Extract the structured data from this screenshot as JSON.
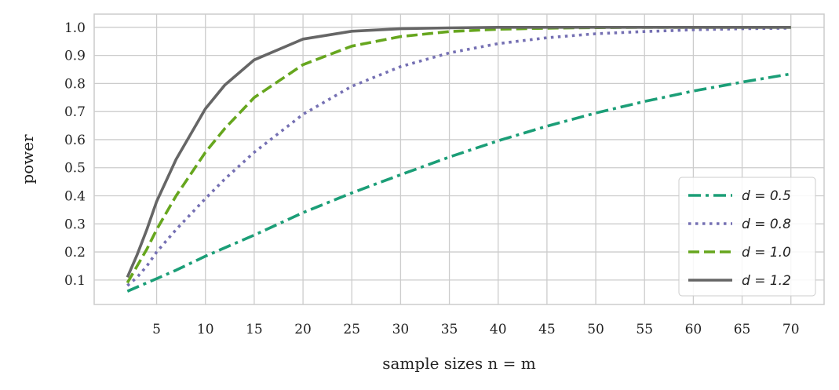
{
  "chart_data": {
    "type": "line",
    "title": "",
    "xlabel": "sample sizes n = m",
    "ylabel": "power",
    "xlim": [
      -1.4,
      73.4
    ],
    "ylim": [
      0.013,
      1.047
    ],
    "xticks": [
      5,
      10,
      15,
      20,
      25,
      30,
      35,
      40,
      45,
      50,
      55,
      60,
      65,
      70
    ],
    "yticks": [
      "0.1",
      "0.2",
      "0.3",
      "0.4",
      "0.5",
      "0.6",
      "0.7",
      "0.8",
      "0.9",
      "1.0"
    ],
    "grid": true,
    "legend_position": "lower-right",
    "x": [
      2,
      3,
      4,
      5,
      7,
      10,
      12,
      15,
      20,
      25,
      30,
      35,
      40,
      45,
      50,
      55,
      60,
      65,
      70
    ],
    "series": [
      {
        "name": "d = 0.5",
        "color": "#1b9e77",
        "style": "dashdot",
        "values": [
          0.06,
          0.075,
          0.09,
          0.105,
          0.135,
          0.185,
          0.215,
          0.26,
          0.34,
          0.41,
          0.475,
          0.538,
          0.596,
          0.648,
          0.695,
          0.736,
          0.773,
          0.805,
          0.834
        ]
      },
      {
        "name": "d = 0.8",
        "color": "#7570b3",
        "style": "dotted",
        "values": [
          0.08,
          0.11,
          0.15,
          0.2,
          0.28,
          0.39,
          0.46,
          0.555,
          0.69,
          0.79,
          0.86,
          0.909,
          0.942,
          0.963,
          0.977,
          0.985,
          0.991,
          0.995,
          0.997
        ]
      },
      {
        "name": "d = 1.0",
        "color": "#66a61e",
        "style": "dashed",
        "values": [
          0.09,
          0.15,
          0.21,
          0.28,
          0.4,
          0.555,
          0.64,
          0.75,
          0.867,
          0.933,
          0.967,
          0.985,
          0.993,
          0.997,
          0.999,
          1.0,
          1.0,
          1.0,
          1.0
        ]
      },
      {
        "name": "d = 1.2",
        "color": "#666666",
        "style": "solid",
        "values": [
          0.11,
          0.19,
          0.28,
          0.38,
          0.53,
          0.71,
          0.795,
          0.884,
          0.958,
          0.986,
          0.995,
          0.998,
          1.0,
          1.0,
          1.0,
          1.0,
          1.0,
          1.0,
          1.0
        ]
      }
    ]
  }
}
